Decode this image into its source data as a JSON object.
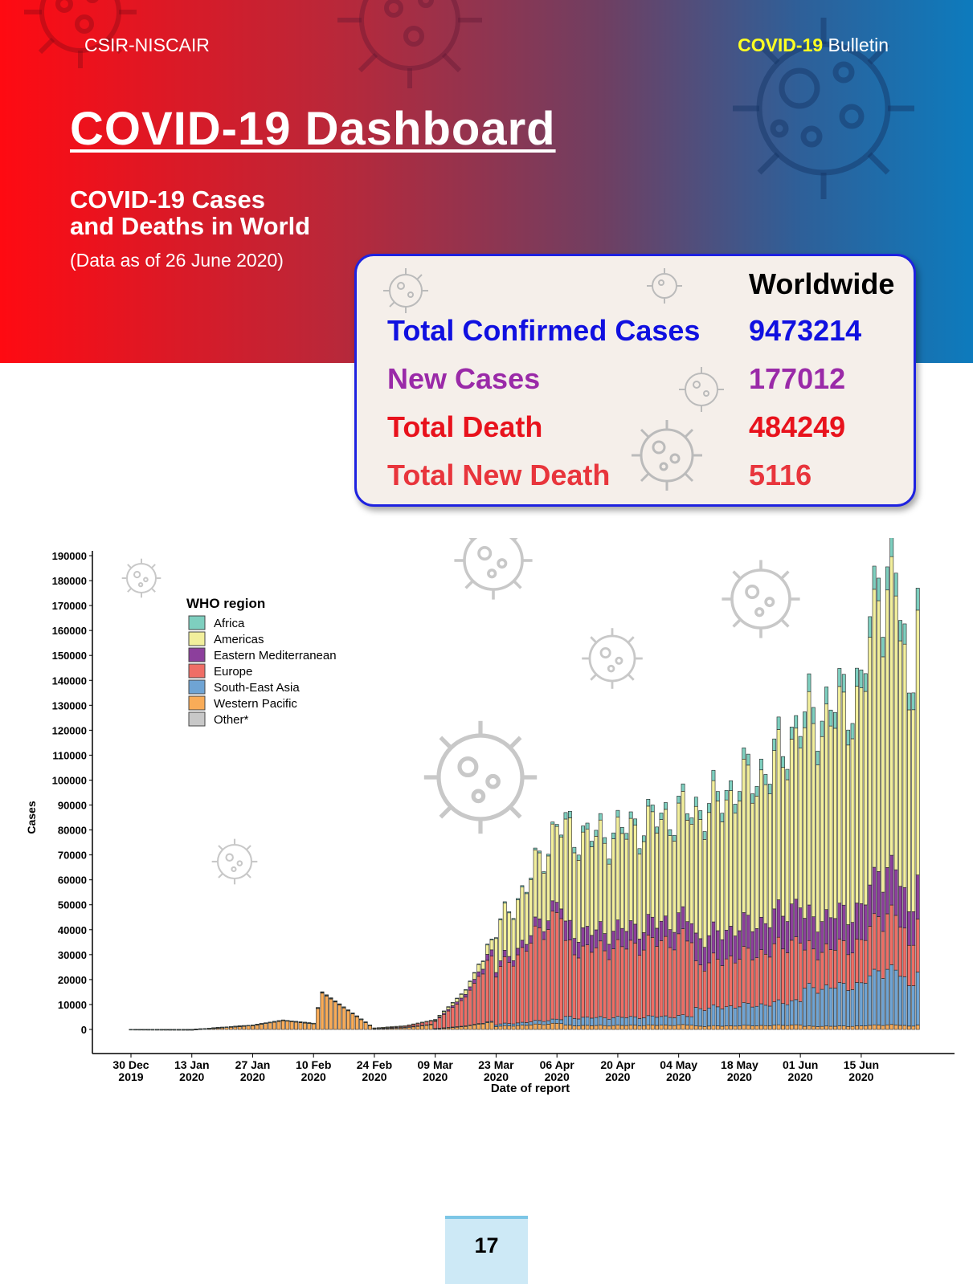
{
  "header": {
    "org": "CSIR-NISCAIR",
    "bulletin_highlight": "COVID-19",
    "bulletin_rest": " Bulletin",
    "title": "COVID-19 Dashboard",
    "subtitle_line1": "COVID-19 Cases",
    "subtitle_line2": "and Deaths in World",
    "data_note": "(Data as of 26 June 2020)"
  },
  "stats": {
    "column_header": "Worldwide",
    "rows": [
      {
        "label": "Total Confirmed Cases",
        "value": "9473214",
        "color": "#1010e0"
      },
      {
        "label": "New Cases",
        "value": "177012",
        "color": "#9a2aa8"
      },
      {
        "label": "Total Death",
        "value": "484249",
        "color": "#e8121c"
      },
      {
        "label": "Total New Death",
        "value": "5116",
        "color": "#e8353c"
      }
    ]
  },
  "chart_data": {
    "type": "bar",
    "stacked": true,
    "xlabel": "Date of report",
    "ylabel": "Cases",
    "ylim": [
      0,
      190000
    ],
    "yticks": [
      "0",
      "10000",
      "20000",
      "30000",
      "40000",
      "50000",
      "60000",
      "70000",
      "80000",
      "90000",
      "100000",
      "110000",
      "120000",
      "130000",
      "140000",
      "150000",
      "160000",
      "170000",
      "180000",
      "190000"
    ],
    "xticks": [
      {
        "line1": "30 Dec",
        "line2": "2019",
        "day": 0
      },
      {
        "line1": "13 Jan",
        "line2": "2020",
        "day": 14
      },
      {
        "line1": "27 Jan",
        "line2": "2020",
        "day": 28
      },
      {
        "line1": "10 Feb",
        "line2": "2020",
        "day": 42
      },
      {
        "line1": "24 Feb",
        "line2": "2020",
        "day": 56
      },
      {
        "line1": "09 Mar",
        "line2": "2020",
        "day": 70
      },
      {
        "line1": "23 Mar",
        "line2": "2020",
        "day": 84
      },
      {
        "line1": "06 Apr",
        "line2": "2020",
        "day": 98
      },
      {
        "line1": "20 Apr",
        "line2": "2020",
        "day": 112
      },
      {
        "line1": "04 May",
        "line2": "2020",
        "day": 126
      },
      {
        "line1": "18 May",
        "line2": "2020",
        "day": 140
      },
      {
        "line1": "01 Jun",
        "line2": "2020",
        "day": 154
      },
      {
        "line1": "15 Jun",
        "line2": "2020",
        "day": 168
      }
    ],
    "legend": {
      "title": "WHO region",
      "placement": "top-left",
      "items": [
        {
          "name": "Africa",
          "color": "#7ecfbf"
        },
        {
          "name": "Americas",
          "color": "#f2ef9c"
        },
        {
          "name": "Eastern Mediterranean",
          "color": "#8c3f9c"
        },
        {
          "name": "Europe",
          "color": "#ef6e66"
        },
        {
          "name": "South-East Asia",
          "color": "#6fa4d4"
        },
        {
          "name": "Western Pacific",
          "color": "#f9ac58"
        },
        {
          "name": "Other*",
          "color": "#c8c8c8"
        }
      ]
    },
    "stack_order": [
      "Western Pacific",
      "South-East Asia",
      "Europe",
      "Eastern Mediterranean",
      "Americas",
      "Africa"
    ],
    "checkpoints": [
      {
        "day": 0,
        "total": 27
      },
      {
        "day": 14,
        "total": 1
      },
      {
        "day": 28,
        "total": 1800
      },
      {
        "day": 35,
        "total": 3800
      },
      {
        "day": 42,
        "total": 2500
      },
      {
        "day": 44,
        "total": 15100
      },
      {
        "day": 56,
        "total": 600
      },
      {
        "day": 63,
        "total": 1500
      },
      {
        "day": 70,
        "total": 4000
      },
      {
        "day": 77,
        "total": 16000
      },
      {
        "day": 84,
        "total": 40000
      },
      {
        "day": 91,
        "total": 58000
      },
      {
        "day": 98,
        "total": 82000
      },
      {
        "day": 105,
        "total": 78000
      },
      {
        "day": 112,
        "total": 80000
      },
      {
        "day": 119,
        "total": 84000
      },
      {
        "day": 126,
        "total": 88000
      },
      {
        "day": 133,
        "total": 90000
      },
      {
        "day": 140,
        "total": 100000
      },
      {
        "day": 147,
        "total": 106000
      },
      {
        "day": 154,
        "total": 125000
      },
      {
        "day": 161,
        "total": 130000
      },
      {
        "day": 168,
        "total": 138000
      },
      {
        "day": 172,
        "total": 181000
      },
      {
        "day": 176,
        "total": 183000
      },
      {
        "day": 179,
        "total": 135000
      },
      {
        "day": 181,
        "total": 177000
      }
    ]
  },
  "footer": {
    "page_number": "17"
  }
}
